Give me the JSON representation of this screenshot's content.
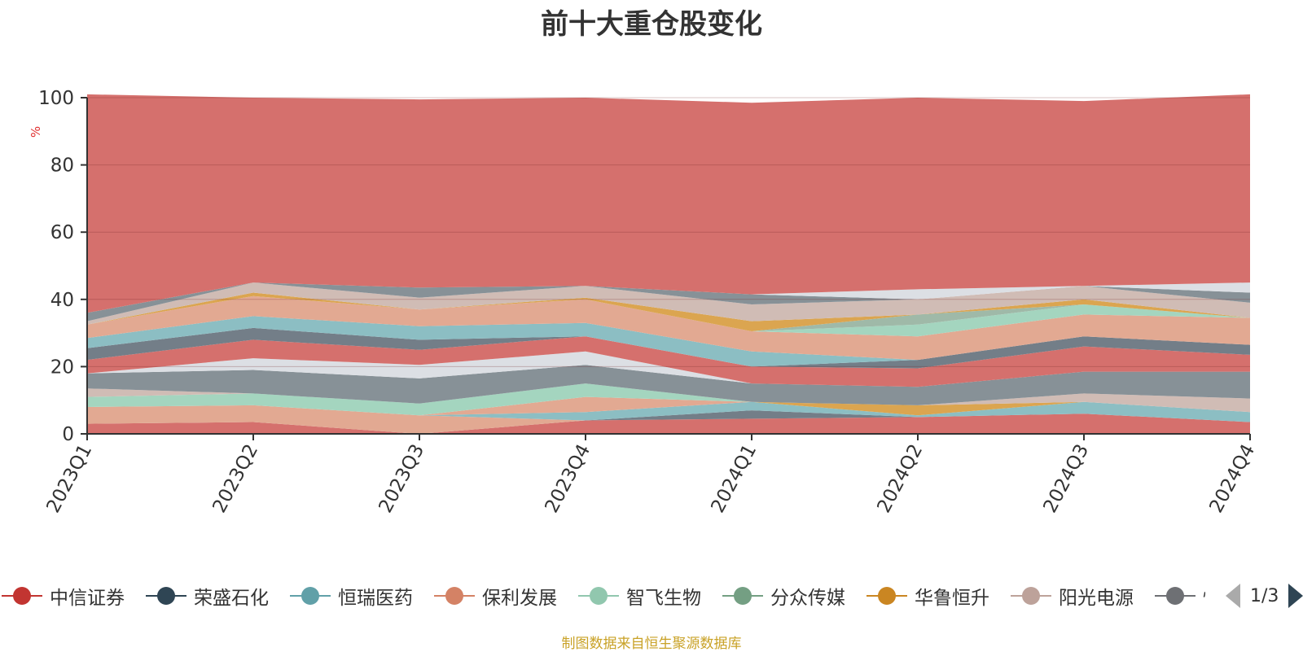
{
  "title": "前十大重仓股变化",
  "footnote": "制图数据来自恒生聚源数据库",
  "legend": {
    "items": [
      {
        "name": "中信证券",
        "color": "#c23531"
      },
      {
        "name": "荣盛石化",
        "color": "#2f4554"
      },
      {
        "name": "恒瑞医药",
        "color": "#61a0a8"
      },
      {
        "name": "保利发展",
        "color": "#d48265"
      },
      {
        "name": "智飞生物",
        "color": "#91c7ae"
      },
      {
        "name": "分众传媒",
        "color": "#749f83"
      },
      {
        "name": "华鲁恒升",
        "color": "#ca8622"
      },
      {
        "name": "阳光电源",
        "color": "#bda29a"
      },
      {
        "name": "恒",
        "color": "#6e7074"
      }
    ],
    "page": "1/3"
  },
  "chart_data": {
    "type": "area",
    "title": "前十大重仓股变化",
    "ylabel": "%",
    "ylim": [
      0,
      100
    ],
    "yticks": [
      0,
      20,
      40,
      60,
      80,
      100
    ],
    "categories": [
      "2023Q1",
      "2023Q2",
      "2023Q3",
      "2023Q4",
      "2024Q1",
      "2024Q2",
      "2024Q3",
      "2024Q4"
    ],
    "series": [
      {
        "color": "#d5706d",
        "values": [
          3,
          3.5,
          0,
          4,
          4.5,
          5,
          6,
          3.5
        ]
      },
      {
        "color": "#e2a992",
        "values": [
          5,
          5,
          5.5,
          0,
          0,
          0,
          0,
          0
        ]
      },
      {
        "color": "#737e88",
        "values": [
          0,
          0,
          0,
          0,
          2.5,
          0,
          0,
          0
        ]
      },
      {
        "color": "#8cbec3",
        "values": [
          0,
          0,
          0,
          2.5,
          2.5,
          0.5,
          3.5,
          3
        ]
      },
      {
        "color": "#e2a992",
        "values": [
          0,
          0,
          0,
          4.5,
          0,
          0,
          0,
          0
        ]
      },
      {
        "color": "#a4d5bf",
        "values": [
          3,
          3.5,
          3.5,
          4,
          0,
          0,
          0,
          0
        ]
      },
      {
        "color": "#dba550",
        "values": [
          0,
          0,
          0,
          0,
          0,
          3,
          0,
          0
        ]
      },
      {
        "color": "#d0bcb5",
        "values": [
          2.5,
          0,
          0,
          0,
          0,
          0,
          2.5,
          4
        ]
      },
      {
        "color": "#879197",
        "values": [
          4.5,
          7,
          7.5,
          5.5,
          5.5,
          5.5,
          6.5,
          8
        ]
      },
      {
        "color": "#dcdfe4",
        "values": [
          0,
          3.5,
          4,
          4,
          0,
          0,
          0,
          0
        ]
      },
      {
        "color": "#d5706d",
        "values": [
          4,
          5.5,
          4.5,
          4.5,
          5,
          5.5,
          7.5,
          5
        ]
      },
      {
        "color": "#737e88",
        "values": [
          3.5,
          3.5,
          3,
          0,
          0,
          2.5,
          3,
          3
        ]
      },
      {
        "color": "#8cbec3",
        "values": [
          3,
          3.5,
          4,
          4,
          4.5,
          0,
          0,
          0
        ]
      },
      {
        "color": "#e2a992",
        "values": [
          4,
          6,
          5,
          7,
          6,
          7,
          6.5,
          8
        ]
      },
      {
        "color": "#a4d5bf",
        "values": [
          0,
          0,
          0,
          0,
          0,
          3.5,
          3,
          0
        ]
      },
      {
        "color": "#9fb9a8",
        "values": [
          0,
          0,
          0,
          0,
          0,
          3,
          0,
          0
        ]
      },
      {
        "color": "#dba550",
        "values": [
          0,
          1,
          0,
          0.5,
          3,
          0,
          1.5,
          0
        ]
      },
      {
        "color": "#d0bcb5",
        "values": [
          1,
          3,
          3.5,
          3.5,
          5,
          4.5,
          4,
          4.5
        ]
      },
      {
        "color": "#879197",
        "values": [
          2.5,
          0,
          3,
          0,
          3,
          0,
          0,
          3
        ]
      },
      {
        "color": "#dcdfe4",
        "values": [
          0,
          0,
          0,
          0,
          0,
          3,
          0,
          3
        ]
      },
      {
        "color": "#d5706d",
        "values": [
          65,
          55,
          56,
          56,
          57,
          57,
          55,
          56
        ]
      }
    ]
  }
}
